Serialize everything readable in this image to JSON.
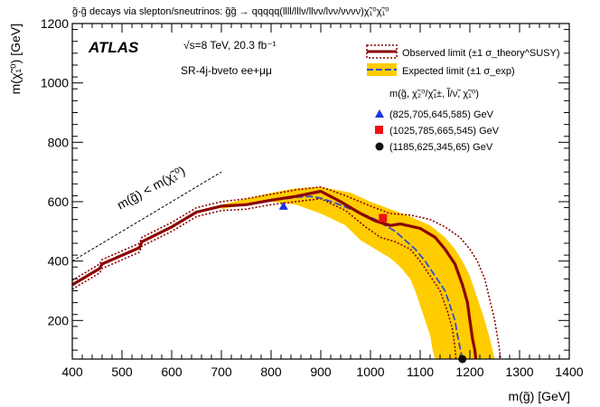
{
  "chart_data": {
    "type": "line",
    "title": "g̃-g̃ decays via slepton/sneutrinos: g̃g̃ → qqqqq(llll/lllν/llνν/lνν/νννν)χ̃₁⁰χ̃₁⁰",
    "experiment": "ATLAS",
    "energy_label": "√s=8 TeV, 20.3 fb⁻¹",
    "region_label": "SR-4j-bveto ee+μμ",
    "xlabel": "m(g̃) [GeV]",
    "ylabel": "m(χ̃₁⁰) [GeV]",
    "xlim": [
      400,
      1400
    ],
    "ylim": [
      70,
      1200
    ],
    "x_ticks": [
      400,
      500,
      600,
      700,
      800,
      900,
      1000,
      1100,
      1200,
      1300,
      1400
    ],
    "y_ticks": [
      200,
      400,
      600,
      800,
      1000,
      1200
    ],
    "diagonal_label": "m(g̃) < m(χ̃₁⁰)",
    "grid": false,
    "legend_position": "top-right",
    "legend": {
      "observed": "Observed limit (±1 σ_theory^SUSY)",
      "expected": "Expected limit (±1 σ_exp)",
      "points_header": "m(g̃, χ̃₂⁰/χ̃₁±, l̃/ν̃, χ̃₁⁰)"
    },
    "colors": {
      "observed": "#8b0000",
      "expected": "#2e4fd0",
      "band": "#ffcc00",
      "point_triangle": "#1a35e0",
      "point_square": "#ee1111",
      "point_circle": "#111111"
    },
    "series": [
      {
        "name": "Observed limit",
        "x": [
          400,
          455,
          460,
          535,
          540,
          600,
          650,
          700,
          750,
          800,
          850,
          900,
          940,
          980,
          1010,
          1040,
          1060,
          1100,
          1130,
          1150,
          1170,
          1185,
          1195,
          1200,
          1205,
          1210,
          1212
        ],
        "y": [
          320,
          375,
          390,
          445,
          465,
          515,
          565,
          585,
          590,
          605,
          618,
          635,
          600,
          560,
          535,
          520,
          525,
          510,
          480,
          440,
          390,
          320,
          260,
          200,
          140,
          100,
          70
        ]
      },
      {
        "name": "Observed +1 sigma theory",
        "x": [
          400,
          455,
          460,
          535,
          540,
          600,
          650,
          700,
          750,
          800,
          850,
          900,
          950,
          1000,
          1040,
          1080,
          1120,
          1150,
          1180,
          1200,
          1215,
          1230,
          1240,
          1250,
          1258,
          1262
        ],
        "y": [
          335,
          390,
          405,
          460,
          480,
          530,
          580,
          600,
          610,
          625,
          640,
          650,
          620,
          585,
          560,
          555,
          540,
          515,
          480,
          440,
          400,
          340,
          270,
          200,
          120,
          70
        ]
      },
      {
        "name": "Observed -1 sigma theory",
        "x": [
          400,
          455,
          460,
          535,
          540,
          600,
          650,
          700,
          750,
          800,
          850,
          900,
          950,
          990,
          1020,
          1050,
          1080,
          1100,
          1120,
          1140,
          1155,
          1165,
          1170,
          1172
        ],
        "y": [
          305,
          360,
          375,
          430,
          450,
          500,
          550,
          570,
          575,
          590,
          600,
          610,
          570,
          515,
          480,
          465,
          440,
          400,
          350,
          300,
          230,
          170,
          110,
          70
        ]
      },
      {
        "name": "Expected limit",
        "x": [
          830,
          850,
          880,
          900,
          930,
          960,
          990,
          1010,
          1030,
          1050,
          1070,
          1090,
          1110,
          1130,
          1150,
          1160,
          1170,
          1175,
          1180,
          1185
        ],
        "y": [
          610,
          615,
          618,
          612,
          595,
          575,
          555,
          540,
          520,
          500,
          470,
          440,
          400,
          350,
          300,
          250,
          200,
          150,
          110,
          70
        ]
      }
    ],
    "expected_band": {
      "upper": {
        "x": [
          700,
          750,
          800,
          850,
          900,
          960,
          1000,
          1040,
          1080,
          1120,
          1150,
          1170,
          1185,
          1200,
          1210,
          1220,
          1230,
          1240,
          1250
        ],
        "y": [
          590,
          610,
          630,
          645,
          650,
          630,
          600,
          575,
          550,
          520,
          480,
          440,
          400,
          350,
          300,
          250,
          200,
          140,
          70
        ]
      },
      "lower": {
        "x": [
          700,
          750,
          800,
          850,
          900,
          950,
          980,
          1010,
          1040,
          1060,
          1080,
          1090,
          1100,
          1110,
          1120,
          1125,
          1130
        ],
        "y": [
          575,
          590,
          600,
          590,
          560,
          520,
          470,
          440,
          410,
          380,
          340,
          300,
          250,
          200,
          150,
          100,
          70
        ]
      }
    },
    "points": [
      {
        "label": "(825,705,645,585) GeV",
        "x": 825,
        "y": 585,
        "marker": "triangle"
      },
      {
        "label": "(1025,785,665,545) GeV",
        "x": 1025,
        "y": 545,
        "marker": "square"
      },
      {
        "label": "(1185,625,345,65) GeV",
        "x": 1185,
        "y": 70,
        "marker": "circle"
      }
    ]
  }
}
